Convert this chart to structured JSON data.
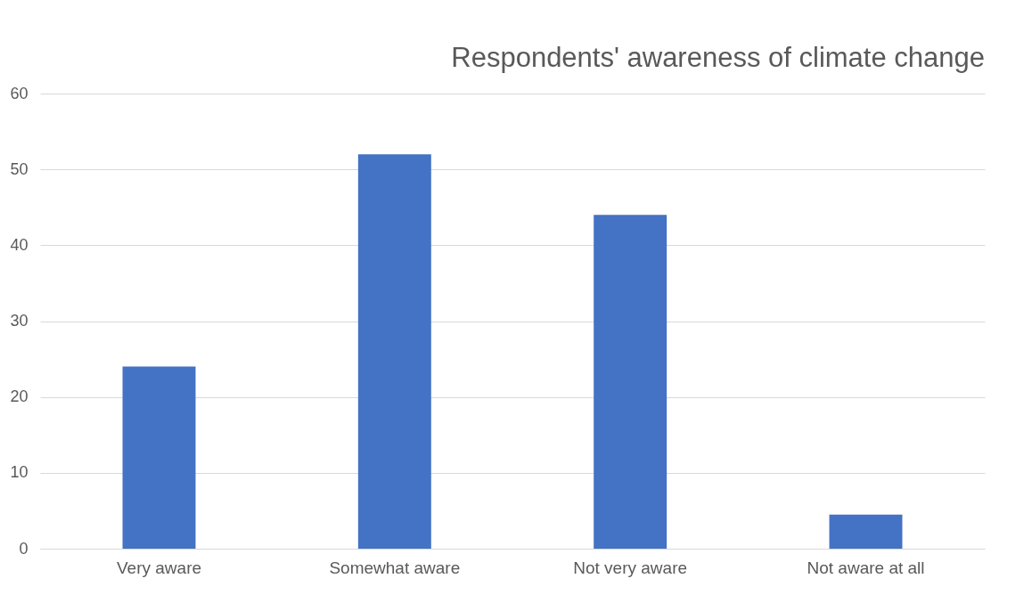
{
  "chart_data": {
    "type": "bar",
    "title": "Respondents' awareness of climate change",
    "categories": [
      "Very aware",
      "Somewhat aware",
      "Not very aware",
      "Not aware at all"
    ],
    "values": [
      24,
      52,
      44,
      4.5
    ],
    "color": "#4472c4",
    "ylim": [
      0,
      60
    ],
    "yticks": [
      0,
      10,
      20,
      30,
      40,
      50,
      60
    ],
    "grid": "y"
  }
}
